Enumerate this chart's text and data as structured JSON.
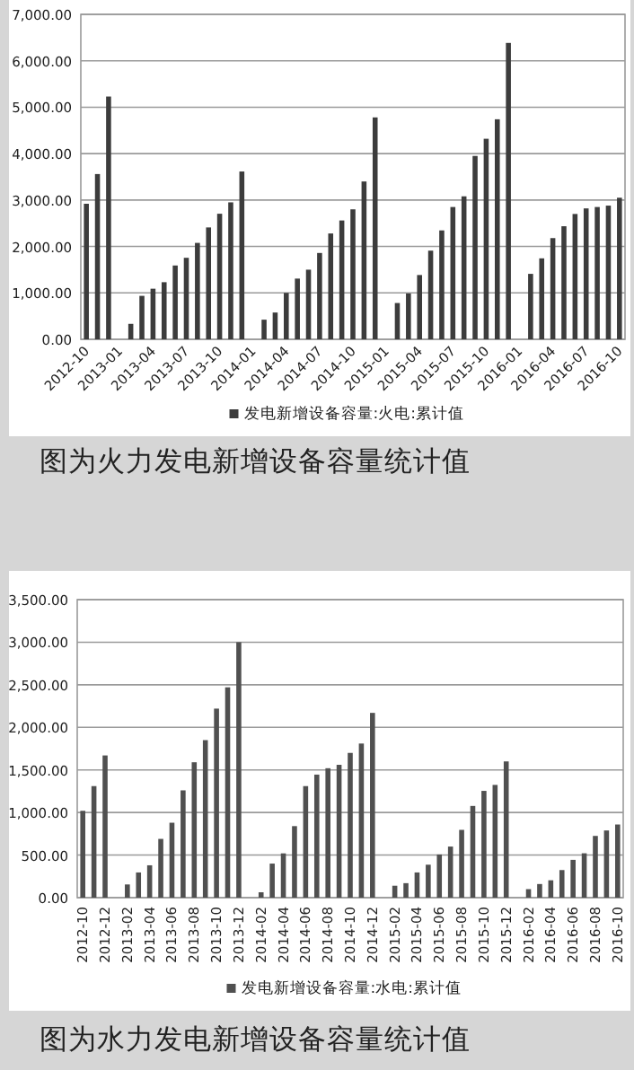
{
  "chart_data": [
    {
      "type": "bar",
      "categories": [
        "2012-10",
        null,
        null,
        "2013-01",
        null,
        null,
        "2013-04",
        null,
        null,
        "2013-07",
        null,
        null,
        "2013-10",
        null,
        null,
        "2014-01",
        null,
        null,
        "2014-04",
        null,
        null,
        "2014-07",
        null,
        null,
        "2014-10",
        null,
        null,
        "2015-01",
        null,
        null,
        "2015-04",
        null,
        null,
        "2015-07",
        null,
        null,
        "2015-10",
        null,
        null,
        "2016-01",
        null,
        null,
        "2016-04",
        null,
        null,
        "2016-07",
        null,
        null,
        "2016-10"
      ],
      "series": [
        {
          "name": "发电新增设备容量:火电:累计值",
          "color": "#3c3c3c",
          "values": [
            2920,
            3560,
            5230,
            null,
            333,
            936,
            1090,
            1230,
            1590,
            1756,
            2077,
            2410,
            2705,
            2950,
            3615,
            null,
            423,
            577,
            1000,
            1308,
            1500,
            1860,
            2280,
            2560,
            2800,
            3400,
            4780,
            null,
            782,
            987,
            1385,
            1910,
            2346,
            2850,
            3080,
            3950,
            4320,
            4740,
            6385,
            null,
            1410,
            1744,
            2180,
            2436,
            2700,
            2820,
            2850,
            2880,
            3050
          ]
        }
      ],
      "ylim": [
        0,
        7000
      ],
      "yticks": [
        {
          "value": 0,
          "label": "0.00"
        },
        {
          "value": 1000,
          "label": "1,000.00"
        },
        {
          "value": 2000,
          "label": "2,000.00"
        },
        {
          "value": 3000,
          "label": "3,000.00"
        },
        {
          "value": 4000,
          "label": "4,000.00"
        },
        {
          "value": 5000,
          "label": "5,000.00"
        },
        {
          "value": 6000,
          "label": "6,000.00"
        },
        {
          "value": 7000,
          "label": "7,000.00"
        }
      ],
      "grid": "y",
      "legend": "bottom",
      "annotations": [
        "图为火力发电新增设备容量统计值"
      ]
    },
    {
      "type": "bar",
      "categories": [
        "2012-10",
        null,
        "2012-12",
        null,
        "2013-02",
        null,
        "2013-04",
        null,
        "2013-06",
        null,
        "2013-08",
        null,
        "2013-10",
        null,
        "2013-12",
        null,
        "2014-02",
        null,
        "2014-04",
        null,
        "2014-06",
        null,
        "2014-08",
        null,
        "2014-10",
        null,
        "2014-12",
        null,
        "2015-02",
        null,
        "2015-04",
        null,
        "2015-06",
        null,
        "2015-08",
        null,
        "2015-10",
        null,
        "2015-12",
        null,
        "2016-02",
        null,
        "2016-04",
        null,
        "2016-06",
        null,
        "2016-08",
        null,
        "2016-10"
      ],
      "series": [
        {
          "name": "发电新增设备容量:水电:累计值",
          "color": "#505050",
          "values": [
            1020,
            1310,
            1670,
            null,
            155,
            296,
            380,
            690,
            880,
            1260,
            1590,
            1850,
            2220,
            2470,
            3000,
            null,
            63,
            400,
            520,
            840,
            1310,
            1445,
            1520,
            1560,
            1700,
            1810,
            2170,
            null,
            140,
            170,
            296,
            387,
            507,
            600,
            796,
            1077,
            1254,
            1324,
            1600,
            null,
            100,
            160,
            204,
            324,
            444,
            521,
            725,
            789,
            859
          ]
        }
      ],
      "ylim": [
        0,
        3500
      ],
      "yticks": [
        {
          "value": 0,
          "label": "0.00"
        },
        {
          "value": 500,
          "label": "500.00"
        },
        {
          "value": 1000,
          "label": "1,000.00"
        },
        {
          "value": 1500,
          "label": "1,500.00"
        },
        {
          "value": 2000,
          "label": "2,000.00"
        },
        {
          "value": 2500,
          "label": "2,500.00"
        },
        {
          "value": 3000,
          "label": "3,000.00"
        },
        {
          "value": 3500,
          "label": "3,500.00"
        }
      ],
      "grid": "y",
      "legend": "bottom",
      "annotations": [
        "图为水力发电新增设备容量统计值"
      ]
    }
  ]
}
